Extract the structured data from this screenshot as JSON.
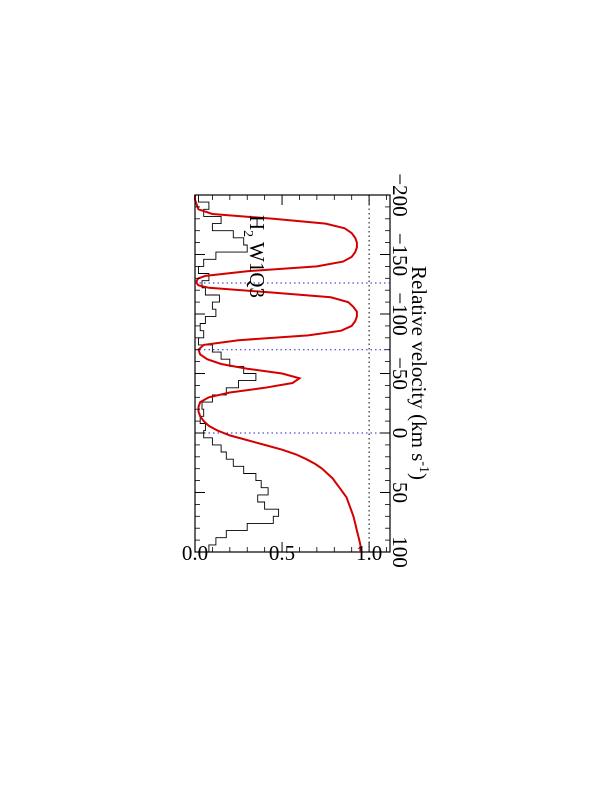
{
  "chart_data": {
    "type": "line",
    "orientation": "rotated 90 degrees clockwise",
    "xlabel": "Relative velocity (km s",
    "xlabel_superscript": "-1",
    "xlabel_close": ")",
    "ylabel": "",
    "xlim": [
      -200,
      100
    ],
    "ylim": [
      0.0,
      1.12
    ],
    "x_ticks": [
      -200,
      -150,
      -100,
      -50,
      0,
      50,
      100
    ],
    "x_tick_labels": [
      "−200",
      "−150",
      "−100",
      "−50",
      "0",
      "50",
      "100"
    ],
    "y_ticks": [
      0.0,
      0.5,
      1.0
    ],
    "y_tick_labels": [
      "0.0",
      "0.5",
      "1.0"
    ],
    "reference_lines": {
      "continuum": 1.0,
      "zero": 0.0
    },
    "component_velocities": [
      -126,
      -70,
      0
    ],
    "line_label": {
      "main": "H",
      "subscript": "2",
      "rest": " W1Q3"
    },
    "colors": {
      "model": "#d40000",
      "data": "#000000",
      "components": "#2222cc",
      "reference": "#000000"
    },
    "series": [
      {
        "role": "data",
        "x": [
          -200,
          -194,
          -188,
          -182,
          -176,
          -170,
          -164,
          -158,
          -152,
          -146,
          -140,
          -134,
          -128,
          -122,
          -116,
          -110,
          -104,
          -98,
          -92,
          -86,
          -80,
          -74,
          -68,
          -62,
          -56,
          -50,
          -44,
          -38,
          -32,
          -26,
          -20,
          -14,
          -8,
          -2,
          4,
          10,
          16,
          22,
          28,
          34,
          40,
          46,
          52,
          58,
          64,
          70,
          76,
          82,
          88,
          94,
          100
        ],
        "y": [
          0.02,
          0.08,
          0.05,
          0.15,
          0.1,
          0.22,
          0.28,
          0.3,
          0.12,
          0.05,
          0.02,
          0.08,
          0.04,
          0.06,
          0.14,
          0.1,
          0.12,
          0.06,
          0.03,
          0.05,
          0.02,
          0.1,
          0.15,
          0.2,
          0.28,
          0.35,
          0.25,
          0.18,
          0.1,
          0.04,
          0.05,
          0.03,
          0.06,
          0.05,
          0.1,
          0.15,
          0.18,
          0.22,
          0.28,
          0.35,
          0.38,
          0.42,
          0.36,
          0.4,
          0.48,
          0.45,
          0.3,
          0.18,
          0.12,
          0.08,
          0.05
        ]
      },
      {
        "role": "model",
        "x": [
          -200,
          -196,
          -192,
          -188,
          -184,
          -180,
          -176,
          -172,
          -168,
          -164,
          -160,
          -156,
          -152,
          -148,
          -144,
          -140,
          -136,
          -132,
          -130,
          -128,
          -126,
          -124,
          -122,
          -118,
          -114,
          -110,
          -106,
          -102,
          -98,
          -94,
          -90,
          -86,
          -82,
          -78,
          -74,
          -70,
          -66,
          -62,
          -58,
          -54,
          -50,
          -46,
          -42,
          -38,
          -34,
          -30,
          -26,
          -22,
          -18,
          -14,
          -10,
          -6,
          -2,
          2,
          6,
          10,
          14,
          18,
          22,
          26,
          30,
          34,
          38,
          42,
          46,
          50,
          54,
          58,
          62,
          66,
          70,
          76,
          82,
          88,
          94,
          100
        ],
        "y": [
          0.0,
          0.0,
          0.01,
          0.02,
          0.1,
          0.45,
          0.75,
          0.86,
          0.9,
          0.92,
          0.93,
          0.93,
          0.92,
          0.9,
          0.85,
          0.7,
          0.3,
          0.06,
          0.02,
          0.01,
          0.01,
          0.02,
          0.08,
          0.45,
          0.78,
          0.88,
          0.91,
          0.93,
          0.93,
          0.92,
          0.9,
          0.84,
          0.65,
          0.25,
          0.05,
          0.02,
          0.03,
          0.07,
          0.15,
          0.3,
          0.5,
          0.6,
          0.56,
          0.4,
          0.2,
          0.08,
          0.03,
          0.02,
          0.02,
          0.03,
          0.05,
          0.08,
          0.13,
          0.2,
          0.3,
          0.4,
          0.5,
          0.58,
          0.64,
          0.69,
          0.73,
          0.76,
          0.79,
          0.81,
          0.83,
          0.85,
          0.87,
          0.88,
          0.89,
          0.9,
          0.91,
          0.92,
          0.93,
          0.94,
          0.95,
          0.95
        ]
      }
    ]
  }
}
